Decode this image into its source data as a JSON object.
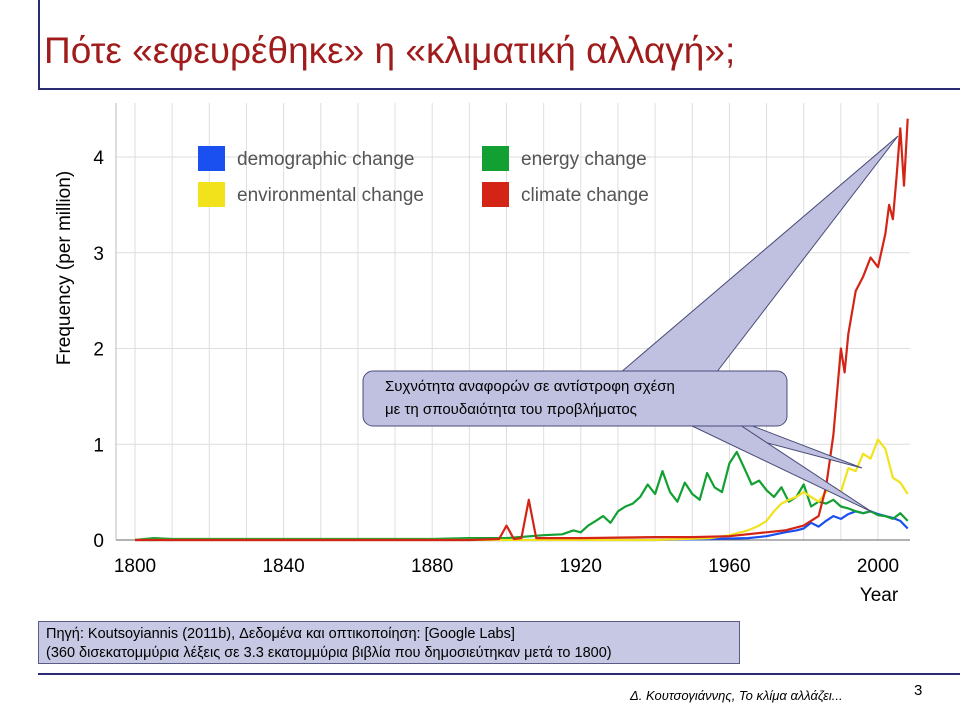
{
  "slide": {
    "title": "Πότε «εφευρέθηκε» η «κλιματική αλλαγή»;",
    "callout": {
      "line1": "Συχνότητα αναφορών σε αντίστροφη σχέση",
      "line2": "με τη σπουδαιότητα του προβλήματος"
    },
    "source": {
      "line1": "Πηγή: Koutsoyiannis (2011b), Δεδομένα και οπτικοποίηση: [Google Labs]",
      "line2": "(360 δισεκατομμύρια λέξεις σε 3.3 εκατομμύρια βιβλία που δημοσιεύτηκαν μετά το 1800)"
    },
    "footer_author": "Δ. Κουτσογιάννης, Το κλίμα αλλάζει...",
    "page_number": "3",
    "colors": {
      "title": "#a01c1c",
      "frame": "#2b2b73",
      "callout_fill": "#c0c1e0"
    }
  },
  "chart_data": {
    "type": "line",
    "xlabel": "Year",
    "ylabel": "Frequency (per million)",
    "xlim": [
      1795,
      2008
    ],
    "ylim": [
      0,
      4.6
    ],
    "x_ticks": [
      1800,
      1840,
      1880,
      1920,
      1960,
      2000
    ],
    "y_ticks": [
      0,
      1,
      2,
      3,
      4
    ],
    "grid": true,
    "legend_position": "top-left",
    "series": [
      {
        "name": "demographic change",
        "color": "#1a4ff0",
        "points": [
          [
            1800,
            0
          ],
          [
            1940,
            0
          ],
          [
            1955,
            0.01
          ],
          [
            1965,
            0.02
          ],
          [
            1970,
            0.04
          ],
          [
            1975,
            0.08
          ],
          [
            1978,
            0.1
          ],
          [
            1980,
            0.12
          ],
          [
            1982,
            0.18
          ],
          [
            1984,
            0.14
          ],
          [
            1986,
            0.2
          ],
          [
            1988,
            0.25
          ],
          [
            1990,
            0.22
          ],
          [
            1992,
            0.27
          ],
          [
            1994,
            0.3
          ],
          [
            1996,
            0.28
          ],
          [
            1998,
            0.3
          ],
          [
            2000,
            0.27
          ],
          [
            2002,
            0.25
          ],
          [
            2004,
            0.23
          ],
          [
            2006,
            0.2
          ],
          [
            2008,
            0.12
          ]
        ]
      },
      {
        "name": "energy change",
        "color": "#12a032",
        "points": [
          [
            1800,
            0
          ],
          [
            1805,
            0.02
          ],
          [
            1810,
            0.01
          ],
          [
            1880,
            0.01
          ],
          [
            1890,
            0.02
          ],
          [
            1900,
            0.02
          ],
          [
            1910,
            0.05
          ],
          [
            1915,
            0.06
          ],
          [
            1918,
            0.1
          ],
          [
            1920,
            0.08
          ],
          [
            1922,
            0.15
          ],
          [
            1924,
            0.2
          ],
          [
            1926,
            0.25
          ],
          [
            1928,
            0.18
          ],
          [
            1930,
            0.3
          ],
          [
            1932,
            0.35
          ],
          [
            1934,
            0.38
          ],
          [
            1936,
            0.45
          ],
          [
            1938,
            0.58
          ],
          [
            1940,
            0.48
          ],
          [
            1942,
            0.72
          ],
          [
            1944,
            0.5
          ],
          [
            1946,
            0.4
          ],
          [
            1948,
            0.6
          ],
          [
            1950,
            0.48
          ],
          [
            1952,
            0.42
          ],
          [
            1954,
            0.7
          ],
          [
            1956,
            0.55
          ],
          [
            1958,
            0.5
          ],
          [
            1960,
            0.8
          ],
          [
            1962,
            0.92
          ],
          [
            1964,
            0.75
          ],
          [
            1966,
            0.58
          ],
          [
            1968,
            0.62
          ],
          [
            1970,
            0.52
          ],
          [
            1972,
            0.45
          ],
          [
            1974,
            0.55
          ],
          [
            1976,
            0.4
          ],
          [
            1978,
            0.45
          ],
          [
            1980,
            0.58
          ],
          [
            1982,
            0.35
          ],
          [
            1984,
            0.4
          ],
          [
            1986,
            0.38
          ],
          [
            1988,
            0.42
          ],
          [
            1990,
            0.35
          ],
          [
            1992,
            0.33
          ],
          [
            1994,
            0.3
          ],
          [
            1996,
            0.28
          ],
          [
            1998,
            0.3
          ],
          [
            2000,
            0.26
          ],
          [
            2002,
            0.25
          ],
          [
            2004,
            0.22
          ],
          [
            2006,
            0.28
          ],
          [
            2008,
            0.2
          ]
        ]
      },
      {
        "name": "environmental change",
        "color": "#f2e21c",
        "points": [
          [
            1800,
            0
          ],
          [
            1940,
            0
          ],
          [
            1955,
            0.02
          ],
          [
            1960,
            0.05
          ],
          [
            1965,
            0.1
          ],
          [
            1968,
            0.15
          ],
          [
            1970,
            0.2
          ],
          [
            1972,
            0.3
          ],
          [
            1974,
            0.38
          ],
          [
            1976,
            0.42
          ],
          [
            1978,
            0.45
          ],
          [
            1980,
            0.5
          ],
          [
            1982,
            0.45
          ],
          [
            1984,
            0.4
          ],
          [
            1986,
            0.5
          ],
          [
            1988,
            0.55
          ],
          [
            1990,
            0.5
          ],
          [
            1992,
            0.75
          ],
          [
            1994,
            0.72
          ],
          [
            1996,
            0.9
          ],
          [
            1998,
            0.85
          ],
          [
            2000,
            1.05
          ],
          [
            2002,
            0.95
          ],
          [
            2004,
            0.65
          ],
          [
            2006,
            0.6
          ],
          [
            2008,
            0.48
          ]
        ]
      },
      {
        "name": "climate change",
        "color": "#d42415",
        "points": [
          [
            1800,
            0
          ],
          [
            1890,
            0
          ],
          [
            1898,
            0.01
          ],
          [
            1900,
            0.15
          ],
          [
            1902,
            0.01
          ],
          [
            1904,
            0.02
          ],
          [
            1906,
            0.42
          ],
          [
            1908,
            0.02
          ],
          [
            1920,
            0.02
          ],
          [
            1940,
            0.03
          ],
          [
            1950,
            0.03
          ],
          [
            1960,
            0.04
          ],
          [
            1970,
            0.08
          ],
          [
            1975,
            0.1
          ],
          [
            1980,
            0.15
          ],
          [
            1984,
            0.25
          ],
          [
            1986,
            0.55
          ],
          [
            1988,
            1.1
          ],
          [
            1990,
            2.0
          ],
          [
            1991,
            1.75
          ],
          [
            1992,
            2.15
          ],
          [
            1994,
            2.6
          ],
          [
            1996,
            2.75
          ],
          [
            1998,
            2.95
          ],
          [
            2000,
            2.85
          ],
          [
            2002,
            3.2
          ],
          [
            2003,
            3.5
          ],
          [
            2004,
            3.35
          ],
          [
            2005,
            3.8
          ],
          [
            2006,
            4.3
          ],
          [
            2007,
            3.7
          ],
          [
            2008,
            4.4
          ]
        ]
      }
    ]
  }
}
